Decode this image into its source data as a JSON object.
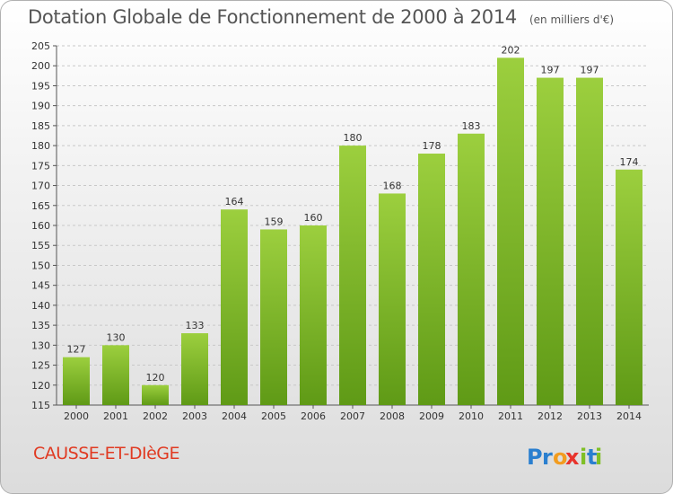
{
  "chart_data": {
    "type": "bar",
    "title": "Dotation Globale de Fonctionnement de 2000 à 2014",
    "unit_note": "(en milliers d'€)",
    "categories": [
      "2000",
      "2001",
      "2002",
      "2003",
      "2004",
      "2005",
      "2006",
      "2007",
      "2008",
      "2009",
      "2010",
      "2011",
      "2012",
      "2013",
      "2014"
    ],
    "values": [
      127,
      130,
      120,
      133,
      164,
      159,
      160,
      180,
      168,
      178,
      183,
      202,
      197,
      197,
      174
    ],
    "ylim": [
      115,
      205
    ],
    "yticks": [
      115,
      120,
      125,
      130,
      135,
      140,
      145,
      150,
      155,
      160,
      165,
      170,
      175,
      180,
      185,
      190,
      195,
      200,
      205
    ],
    "grid": true,
    "bar_color_top": "#9ccf3e",
    "bar_color_bottom": "#5f9a16"
  },
  "commune_name": "CAUSSE-ET-DIèGE",
  "logo": {
    "text": "Proxiti",
    "letters": [
      "P",
      "r",
      "o",
      "x",
      "i",
      "t",
      "i"
    ],
    "colors": [
      "#2a7fcf",
      "#2a7fcf",
      "#f29c1f",
      "#e8332b",
      "#7fbf26",
      "#2a7fcf",
      "#7fbf26"
    ]
  }
}
